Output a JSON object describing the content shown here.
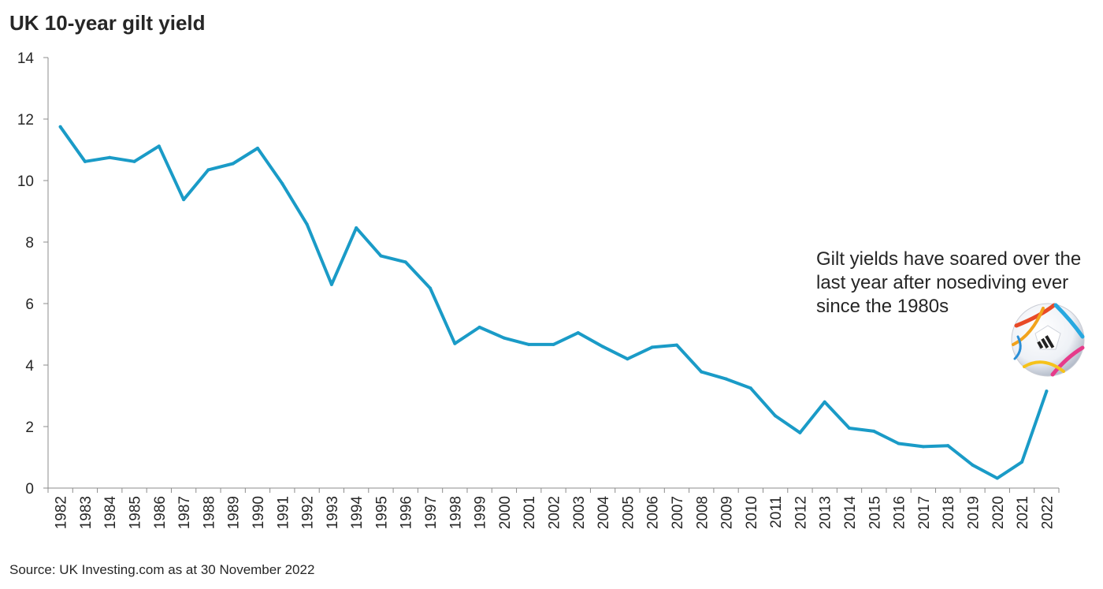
{
  "title": "UK 10-year gilt yield",
  "source": "Source: UK Investing.com as at 30 November 2022",
  "annotation": "Gilt yields have soared over the last year after nosediving ever since the 1980s",
  "colors": {
    "line": "#1a9bc7",
    "axis": "#8c8c8c",
    "text": "#262626"
  },
  "football_icon": "football-icon",
  "chart_data": {
    "type": "line",
    "title": "UK 10-year gilt yield",
    "xlabel": "",
    "ylabel": "",
    "ylim": [
      0,
      14
    ],
    "yticks": [
      0,
      2,
      4,
      6,
      8,
      10,
      12,
      14
    ],
    "grid": false,
    "categories": [
      "1982",
      "1983",
      "1984",
      "1985",
      "1986",
      "1987",
      "1988",
      "1989",
      "1990",
      "1991",
      "1992",
      "1993",
      "1994",
      "1995",
      "1996",
      "1997",
      "1998",
      "1999",
      "2000",
      "2001",
      "2002",
      "2003",
      "2004",
      "2005",
      "2006",
      "2007",
      "2008",
      "2009",
      "2010",
      "2011",
      "2012",
      "2013",
      "2014",
      "2015",
      "2016",
      "2017",
      "2018",
      "2019",
      "2020",
      "2021",
      "2022"
    ],
    "series": [
      {
        "values": [
          11.75,
          10.62,
          10.75,
          10.62,
          11.12,
          9.38,
          10.35,
          10.55,
          11.05,
          9.9,
          8.58,
          6.62,
          8.46,
          7.55,
          7.35,
          6.5,
          4.7,
          5.23,
          4.88,
          4.67,
          4.67,
          5.05,
          4.6,
          4.2,
          4.58,
          4.65,
          3.78,
          3.55,
          3.25,
          2.35,
          1.8,
          2.8,
          1.95,
          1.85,
          1.45,
          1.35,
          1.38,
          0.75,
          0.32,
          0.85,
          3.15
        ]
      }
    ]
  }
}
